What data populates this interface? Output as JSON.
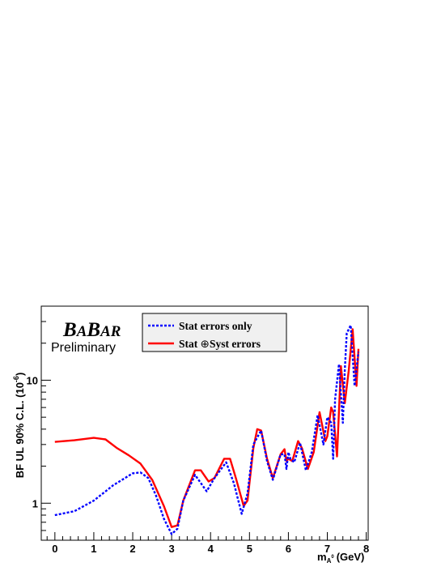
{
  "chart_data": {
    "type": "line",
    "xlabel": "m",
    "xlabel_sub": "A",
    "xlabel_sup": "0",
    "xlabel_unit": "(GeV)",
    "ylabel": "BF UL  90% C.L. (10",
    "ylabel_exp": "-6",
    "ylabel_close": ")",
    "xlim": [
      -0.35,
      8.05
    ],
    "ylim": [
      0.5,
      40
    ],
    "y_scale": "log",
    "x_ticks": [
      "0",
      "1",
      "2",
      "3",
      "4",
      "5",
      "6",
      "7",
      "8"
    ],
    "y_ticks": [
      "1",
      "10"
    ],
    "logo": {
      "first": "B",
      "small1": "A",
      "mid": "B",
      "small2": "AR"
    },
    "annotation": "Preliminary",
    "legend": {
      "placement": "top-center",
      "entries": [
        {
          "label": "Stat errors only",
          "color": "#0000ff",
          "style": "dotted"
        },
        {
          "label_pre": "Stat ",
          "symbol": "⊕",
          "label_post": "Syst errors",
          "color": "#ff0000",
          "style": "solid"
        }
      ]
    },
    "series": [
      {
        "color": "#0000ff",
        "style": "dotted",
        "x": [
          0,
          0.5,
          1.0,
          1.5,
          2.0,
          2.2,
          2.4,
          2.6,
          2.8,
          3.0,
          3.15,
          3.3,
          3.6,
          3.9,
          4.1,
          4.4,
          4.6,
          4.8,
          4.95,
          5.1,
          5.3,
          5.45,
          5.6,
          5.8,
          5.9,
          5.95,
          6.0,
          6.05,
          6.15,
          6.3,
          6.45,
          6.6,
          6.75,
          6.9,
          7.0,
          7.1,
          7.15,
          7.2,
          7.3,
          7.4,
          7.45,
          7.5,
          7.6,
          7.7,
          7.8
        ],
        "y": [
          0.8,
          0.86,
          1.05,
          1.4,
          1.75,
          1.78,
          1.6,
          1.15,
          0.75,
          0.56,
          0.62,
          1.05,
          1.7,
          1.25,
          1.6,
          2.15,
          1.45,
          0.82,
          1.2,
          3.0,
          3.9,
          2.2,
          1.55,
          2.5,
          2.5,
          1.9,
          2.6,
          2.3,
          2.15,
          3.1,
          1.85,
          2.6,
          5.2,
          3.0,
          5.0,
          4.5,
          2.3,
          7.0,
          13.5,
          4.5,
          12.0,
          24.0,
          28.0,
          9.0,
          17.0
        ]
      },
      {
        "color": "#ff0000",
        "style": "solid",
        "x": [
          0,
          0.5,
          1.0,
          1.3,
          1.6,
          1.9,
          2.2,
          2.5,
          2.8,
          3.0,
          3.15,
          3.3,
          3.6,
          3.75,
          3.95,
          4.1,
          4.35,
          4.5,
          4.65,
          4.85,
          4.95,
          5.1,
          5.2,
          5.3,
          5.45,
          5.6,
          5.8,
          5.9,
          5.95,
          6.0,
          6.1,
          6.25,
          6.35,
          6.5,
          6.65,
          6.8,
          6.95,
          7.0,
          7.1,
          7.15,
          7.25,
          7.35,
          7.45,
          7.55,
          7.65,
          7.75,
          7.8
        ],
        "y": [
          3.15,
          3.25,
          3.4,
          3.3,
          2.8,
          2.45,
          2.1,
          1.55,
          0.95,
          0.64,
          0.66,
          1.05,
          1.85,
          1.85,
          1.5,
          1.6,
          2.3,
          2.3,
          1.6,
          0.95,
          1.05,
          2.8,
          4.0,
          3.9,
          2.3,
          1.6,
          2.5,
          2.75,
          2.2,
          2.3,
          2.2,
          3.2,
          2.8,
          1.9,
          2.6,
          5.5,
          3.2,
          3.5,
          6.0,
          5.5,
          2.4,
          13.0,
          6.5,
          12.0,
          26.0,
          9.0,
          18.0
        ]
      }
    ]
  }
}
